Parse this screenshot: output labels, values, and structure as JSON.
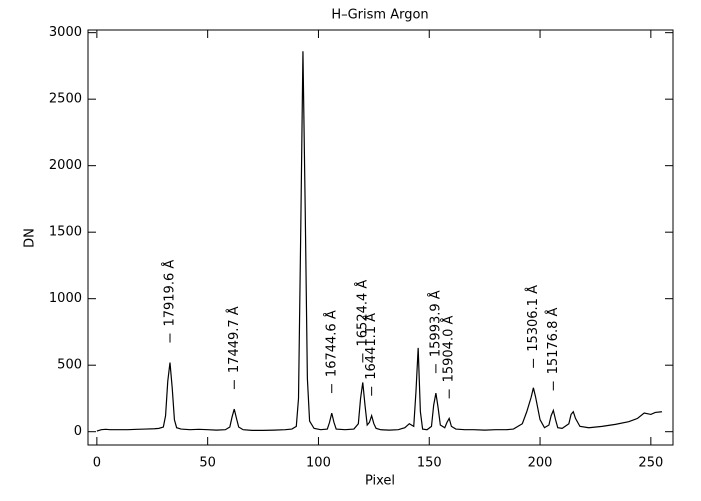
{
  "chart_data": {
    "type": "line",
    "title": "H–Grism Argon",
    "x_label": "Pixel",
    "y_label": "DN",
    "x": [
      0,
      2,
      4,
      6,
      8,
      10,
      14,
      18,
      22,
      26,
      28,
      30,
      31,
      32,
      33,
      34,
      35,
      36,
      38,
      42,
      46,
      50,
      54,
      58,
      60,
      61,
      62,
      63,
      64,
      66,
      70,
      75,
      80,
      85,
      88,
      90,
      91,
      92,
      93,
      94,
      95,
      96,
      98,
      101,
      104,
      105,
      106,
      107,
      108,
      112,
      116,
      118,
      119,
      120,
      121,
      122,
      123,
      124,
      125,
      126,
      128,
      132,
      136,
      139,
      141,
      143,
      144,
      145,
      146,
      147,
      149,
      151,
      152,
      153,
      154,
      155,
      157,
      158,
      159,
      160,
      162,
      166,
      170,
      175,
      180,
      185,
      188,
      190,
      192,
      194,
      196,
      197,
      198,
      200,
      202,
      204,
      205,
      206,
      207,
      208,
      210,
      213,
      214,
      215,
      216,
      218,
      222,
      228,
      234,
      240,
      244,
      247,
      250,
      252,
      255
    ],
    "series": [
      {
        "name": "Argon",
        "color": "#000000",
        "values": [
          5,
          15,
          18,
          15,
          15,
          15,
          15,
          18,
          20,
          22,
          25,
          35,
          120,
          380,
          520,
          330,
          90,
          30,
          20,
          15,
          18,
          15,
          12,
          15,
          35,
          110,
          170,
          100,
          35,
          15,
          10,
          10,
          12,
          15,
          20,
          40,
          250,
          1500,
          2860,
          1700,
          400,
          80,
          25,
          15,
          20,
          70,
          140,
          70,
          20,
          15,
          20,
          60,
          250,
          370,
          200,
          50,
          70,
          120,
          60,
          25,
          15,
          12,
          15,
          30,
          60,
          40,
          300,
          630,
          150,
          20,
          15,
          40,
          200,
          290,
          180,
          50,
          30,
          70,
          100,
          40,
          20,
          15,
          15,
          12,
          15,
          15,
          20,
          40,
          60,
          150,
          260,
          330,
          260,
          90,
          30,
          50,
          120,
          160,
          90,
          30,
          25,
          60,
          130,
          150,
          100,
          40,
          30,
          40,
          55,
          75,
          100,
          140,
          130,
          145,
          150
        ]
      }
    ],
    "annotations": [
      {
        "text": "17919.6 Å",
        "x": 33
      },
      {
        "text": "17449.7 Å",
        "x": 62
      },
      {
        "text": "16744.6 Å",
        "x": 106
      },
      {
        "text": "16524.4 Å",
        "x": 120
      },
      {
        "text": "16441.1 Å",
        "x": 124
      },
      {
        "text": "15993.9 Å",
        "x": 153
      },
      {
        "text": "15904.0 Å",
        "x": 159
      },
      {
        "text": "15306.1 Å",
        "x": 197
      },
      {
        "text": "15176.8 Å",
        "x": 206
      }
    ],
    "xlim": [
      -4,
      260
    ],
    "ylim": [
      -100,
      3020
    ],
    "xticks": [
      0,
      50,
      100,
      150,
      200,
      250
    ],
    "yticks": [
      0,
      500,
      1000,
      1500,
      2000,
      2500,
      3000
    ]
  }
}
